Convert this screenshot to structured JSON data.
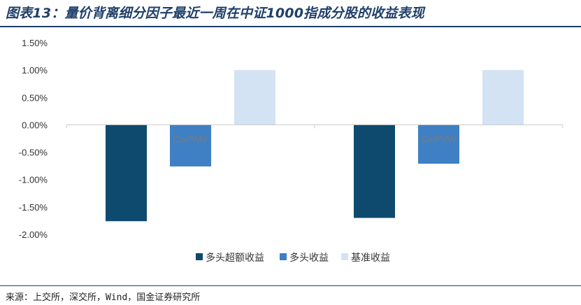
{
  "header": {
    "title": "图表13：量价背离细分因子最近一周在中证1000指成分股的收益表现"
  },
  "footer": {
    "source": "来源：上交所，深交所，Wind，国金证券研究所"
  },
  "chart_data": {
    "type": "bar",
    "categories": [
      "CorPMV",
      "CorPVW"
    ],
    "series": [
      {
        "name": "多头超额收益",
        "color": "#0d4a6e",
        "values": [
          -1.76,
          -1.7
        ]
      },
      {
        "name": "多头收益",
        "color": "#3f80c4",
        "values": [
          -0.76,
          -0.71
        ]
      },
      {
        "name": "基准收益",
        "color": "#d3e3f4",
        "values": [
          1.0,
          1.0
        ]
      }
    ],
    "ylim": [
      -2.0,
      1.5
    ],
    "yticks": [
      "1.50%",
      "1.00%",
      "0.50%",
      "0.00%",
      "-0.50%",
      "-1.00%",
      "-1.50%",
      "-2.00%"
    ],
    "ytick_values": [
      1.5,
      1.0,
      0.5,
      0.0,
      -0.5,
      -1.0,
      -1.5,
      -2.0
    ],
    "title": "",
    "xlabel": "",
    "ylabel": "",
    "grid": false,
    "legend_position": "bottom"
  }
}
